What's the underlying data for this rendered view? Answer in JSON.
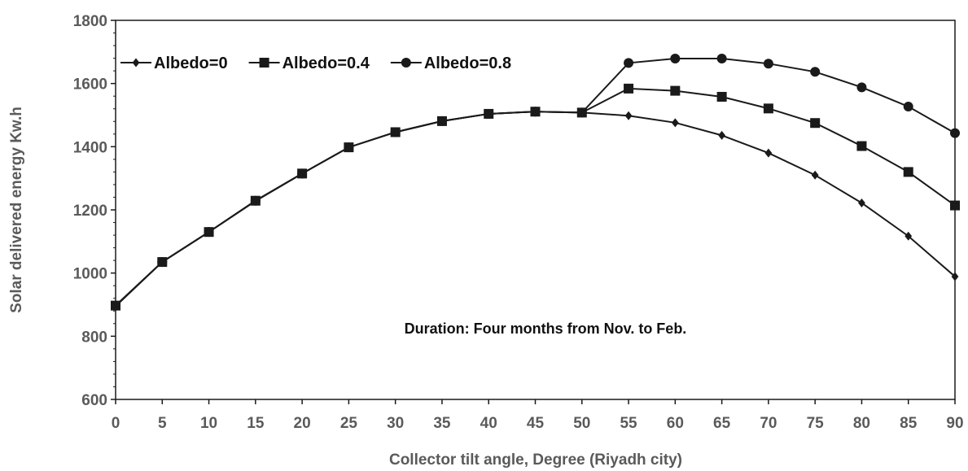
{
  "chart_data": {
    "type": "line",
    "xlabel": "Collector tilt angle, Degree (Riyadh city)",
    "ylabel": "Solar delivered energy Kw.h",
    "annotation": "Duration: Four months from Nov. to Feb.",
    "xlim": [
      0,
      90
    ],
    "ylim": [
      600,
      1800
    ],
    "x_ticks": [
      0,
      5,
      10,
      15,
      20,
      25,
      30,
      35,
      40,
      45,
      50,
      55,
      60,
      65,
      70,
      75,
      80,
      85,
      90
    ],
    "y_ticks": [
      600,
      800,
      1000,
      1200,
      1400,
      1600,
      1800
    ],
    "x": [
      0,
      5,
      10,
      15,
      20,
      25,
      30,
      35,
      40,
      45,
      50,
      55,
      60,
      65,
      70,
      75,
      80,
      85,
      90
    ],
    "legend_position": "top-left",
    "grid": false,
    "series": [
      {
        "name": "Albedo=0",
        "marker": "diamond",
        "color": "#1a1a1a",
        "values": [
          895,
          1035,
          1130,
          1228,
          1315,
          1398,
          1446,
          1481,
          1504,
          1511,
          1508,
          1498,
          1476,
          1436,
          1380,
          1310,
          1222,
          1117,
          989
        ]
      },
      {
        "name": "Albedo=0.4",
        "marker": "square",
        "color": "#1a1a1a",
        "values": [
          897,
          1035,
          1130,
          1229,
          1315,
          1398,
          1446,
          1481,
          1504,
          1511,
          1508,
          1584,
          1577,
          1558,
          1521,
          1475,
          1402,
          1320,
          1214
        ]
      },
      {
        "name": "Albedo=0.8",
        "marker": "circle",
        "color": "#1a1a1a",
        "values": [
          897,
          1035,
          1130,
          1229,
          1315,
          1398,
          1446,
          1481,
          1504,
          1511,
          1508,
          1665,
          1679,
          1679,
          1663,
          1637,
          1588,
          1527,
          1443
        ]
      }
    ]
  }
}
